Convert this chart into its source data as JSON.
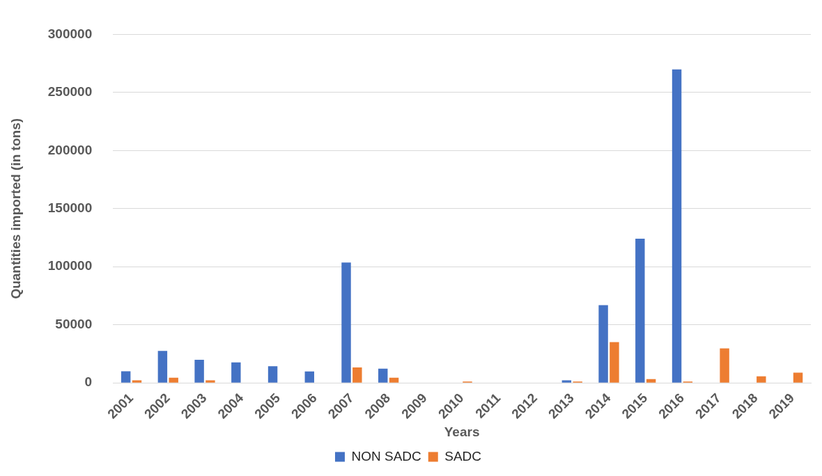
{
  "chart_data": {
    "type": "bar",
    "xlabel": "Years",
    "ylabel": "Quantities imported (in tons)",
    "categories": [
      "2001",
      "2002",
      "2003",
      "2004",
      "2005",
      "2006",
      "2007",
      "2008",
      "2009",
      "2010",
      "2011",
      "2012",
      "2013",
      "2014",
      "2015",
      "2016",
      "2017",
      "2018",
      "2019"
    ],
    "series": [
      {
        "name": "NON SADC",
        "color": "#4472c4",
        "values": [
          10000,
          27500,
          19900,
          17700,
          14300,
          9800,
          103600,
          12200,
          0,
          0,
          0,
          0,
          2200,
          66900,
          124100,
          269900,
          0,
          0,
          0
        ]
      },
      {
        "name": "SADC",
        "color": "#ed7d31",
        "values": [
          2200,
          4400,
          2200,
          0,
          0,
          0,
          13300,
          4400,
          0,
          1200,
          0,
          0,
          1200,
          35100,
          3200,
          1200,
          29700,
          5600,
          8800
        ]
      }
    ],
    "ylim": [
      0,
      300000
    ],
    "yticks": [
      0,
      50000,
      100000,
      150000,
      200000,
      250000,
      300000
    ],
    "grid": "y",
    "legend": "bottom"
  }
}
